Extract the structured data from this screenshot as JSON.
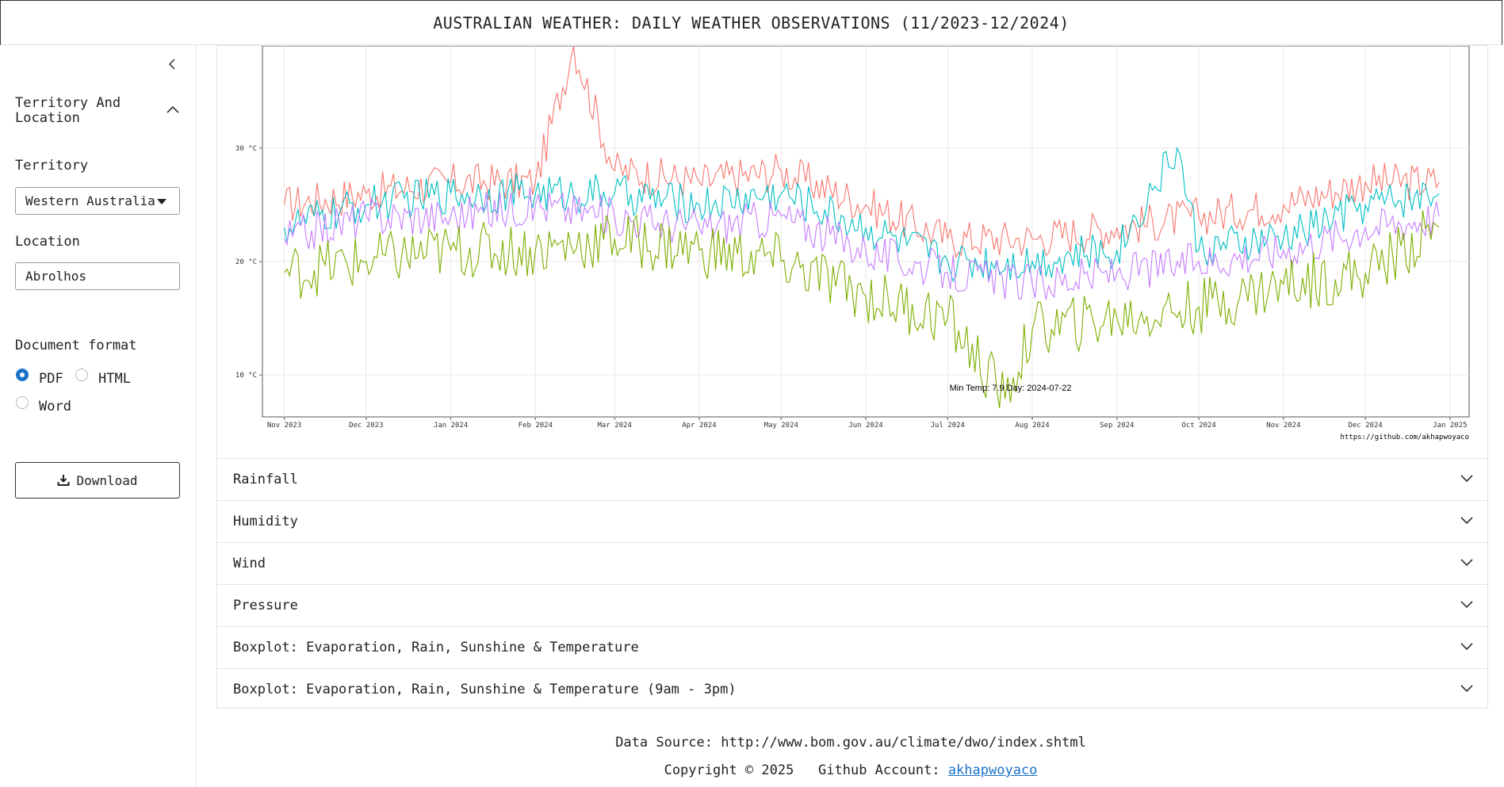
{
  "header": {
    "title": "AUSTRALIAN WEATHER: DAILY WEATHER OBSERVATIONS (11/2023-12/2024)"
  },
  "sidebar": {
    "section_title": "Territory And Location",
    "territory_label": "Territory",
    "territory_value": "Western Australia",
    "location_label": "Location",
    "location_value": "Abrolhos",
    "format_label": "Document format",
    "formats": [
      {
        "label": "PDF",
        "selected": true
      },
      {
        "label": "HTML",
        "selected": false
      },
      {
        "label": "Word",
        "selected": false
      }
    ],
    "download_label": "Download"
  },
  "chart_data": {
    "type": "line",
    "title": "",
    "xlabel": "",
    "ylabel": "",
    "x_ticks": [
      "Nov 2023",
      "Dec 2023",
      "Jan 2024",
      "Feb 2024",
      "Mar 2024",
      "Apr 2024",
      "May 2024",
      "Jun 2024",
      "Jul 2024",
      "Aug 2024",
      "Sep 2024",
      "Oct 2024",
      "Nov 2024",
      "Dec 2024",
      "Jan 2025"
    ],
    "y_ticks": [
      "10 °C",
      "20 °C",
      "30 °C"
    ],
    "ylim": [
      6.3,
      39
    ],
    "xlim": [
      "2023-10-24",
      "2025-01-08"
    ],
    "grid": true,
    "legend": "none",
    "series": [
      {
        "color": "#f8766d",
        "x": [
          "2023-11-01",
          "2023-12-01",
          "2024-01-01",
          "2024-02-01",
          "2024-02-15",
          "2024-03-01",
          "2024-04-01",
          "2024-05-01",
          "2024-06-01",
          "2024-07-01",
          "2024-08-01",
          "2024-09-01",
          "2024-10-01",
          "2024-11-01",
          "2024-12-01",
          "2024-12-28"
        ],
        "y": [
          25,
          26,
          27,
          27,
          39,
          28,
          27,
          28,
          25,
          22,
          22,
          23,
          24,
          25,
          27,
          27
        ]
      },
      {
        "color": "#00bfc4",
        "x": [
          "2023-11-01",
          "2023-12-01",
          "2024-01-01",
          "2024-02-01",
          "2024-03-01",
          "2024-04-01",
          "2024-05-01",
          "2024-06-01",
          "2024-07-01",
          "2024-08-01",
          "2024-09-01",
          "2024-09-23",
          "2024-10-01",
          "2024-11-01",
          "2024-12-01",
          "2024-12-28"
        ],
        "y": [
          23,
          25,
          26,
          26,
          26,
          25,
          26,
          23,
          20,
          20,
          21,
          30,
          21,
          22,
          25,
          26
        ]
      },
      {
        "color": "#c77cff",
        "x": [
          "2023-11-01",
          "2023-12-01",
          "2024-01-01",
          "2024-02-01",
          "2024-03-01",
          "2024-04-01",
          "2024-05-01",
          "2024-06-01",
          "2024-07-01",
          "2024-08-01",
          "2024-09-01",
          "2024-10-01",
          "2024-11-01",
          "2024-12-01",
          "2024-12-28"
        ],
        "y": [
          22,
          24,
          24,
          25,
          24,
          23,
          24,
          21,
          19,
          18,
          19,
          20,
          21,
          23,
          24
        ]
      },
      {
        "color": "#7cae00",
        "x": [
          "2023-11-01",
          "2023-12-01",
          "2024-01-01",
          "2024-02-01",
          "2024-03-01",
          "2024-04-01",
          "2024-05-01",
          "2024-06-01",
          "2024-07-01",
          "2024-07-22",
          "2024-08-01",
          "2024-09-01",
          "2024-10-01",
          "2024-11-01",
          "2024-12-01",
          "2024-12-28"
        ],
        "y": [
          19,
          20,
          21,
          21,
          22,
          21,
          20,
          17,
          15,
          7.9,
          14,
          15,
          16,
          18,
          19,
          23
        ]
      }
    ],
    "annotation": {
      "text": "Min Temp: 7.9 Day: 2024-07-22",
      "x": "2024-07-22",
      "y": 7.9
    },
    "caption": "https://github.com/akhapwoyaco"
  },
  "accordions": [
    {
      "label": "Rainfall"
    },
    {
      "label": "Humidity"
    },
    {
      "label": "Wind"
    },
    {
      "label": "Pressure"
    },
    {
      "label": "Boxplot: Evaporation, Rain, Sunshine & Temperature"
    },
    {
      "label": "Boxplot: Evaporation, Rain, Sunshine & Temperature (9am - 3pm)"
    }
  ],
  "footer": {
    "source": "Data Source: http://www.bom.gov.au/climate/dwo/index.shtml",
    "copyright": "Copyright © 2025   Github Account: ",
    "github_link": "akhapwoyaco"
  }
}
